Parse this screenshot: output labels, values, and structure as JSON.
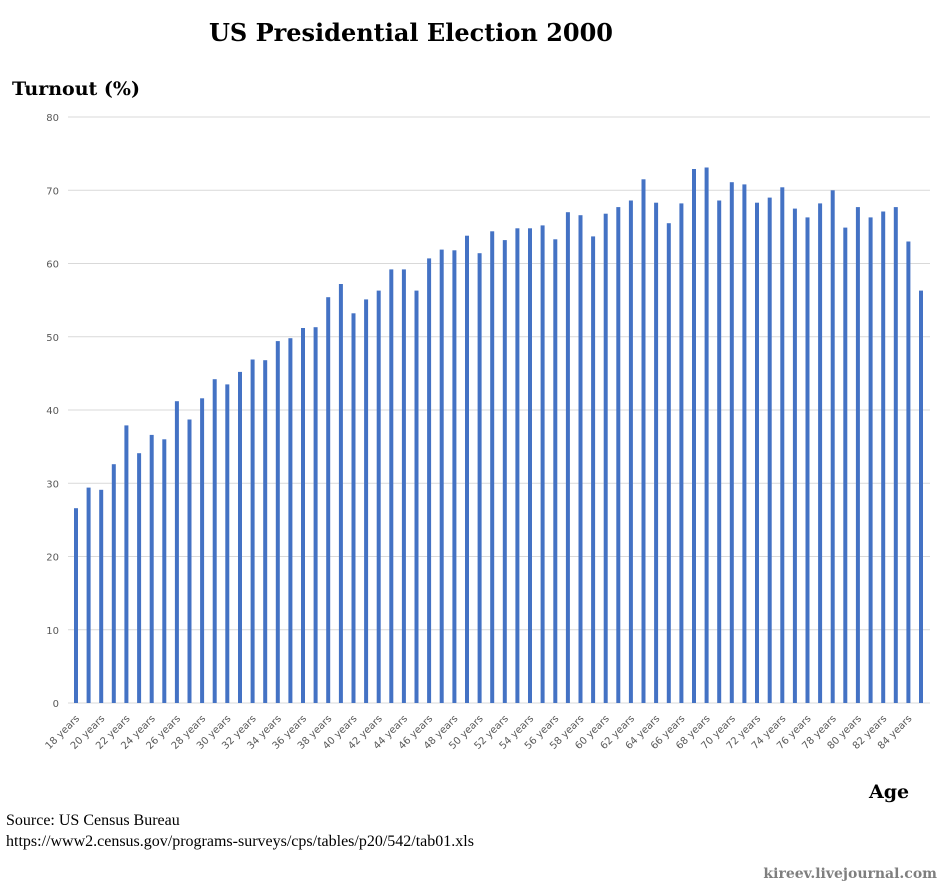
{
  "chart_data": {
    "type": "bar",
    "title": "US Presidential Election 2000",
    "ylabel": "Turnout (%)",
    "xlabel": "Age",
    "ylim": [
      0,
      80
    ],
    "yticks": [
      0,
      10,
      20,
      30,
      40,
      50,
      60,
      70,
      80
    ],
    "grid": true,
    "legend": "none",
    "bar_color": "#4472c4",
    "grid_color": "#d9d9d9",
    "categories": [
      "18 years",
      "19 years",
      "20 years",
      "21 years",
      "22 years",
      "23 years",
      "24 years",
      "25 years",
      "26 years",
      "27 years",
      "28 years",
      "29 years",
      "30 years",
      "31 years",
      "32 years",
      "33 years",
      "34 years",
      "35 years",
      "36 years",
      "37 years",
      "38 years",
      "39 years",
      "40 years",
      "41 years",
      "42 years",
      "43 years",
      "44 years",
      "45 years",
      "46 years",
      "47 years",
      "48 years",
      "49 years",
      "50 years",
      "51 years",
      "52 years",
      "53 years",
      "54 years",
      "55 years",
      "56 years",
      "57 years",
      "58 years",
      "59 years",
      "60 years",
      "61 years",
      "62 years",
      "63 years",
      "64 years",
      "65 years",
      "66 years",
      "67 years",
      "68 years",
      "69 years",
      "70 years",
      "71 years",
      "72 years",
      "73 years",
      "74 years",
      "75 years",
      "76 years",
      "77 years",
      "78 years",
      "79 years",
      "80 years",
      "81 years",
      "82 years",
      "83 years",
      "84 years",
      "85 years"
    ],
    "xtick_labels": [
      "18 years",
      "20 years",
      "22 years",
      "24 years",
      "26 years",
      "28 years",
      "30 years",
      "32 years",
      "34 years",
      "36 years",
      "38 years",
      "40 years",
      "42 years",
      "44 years",
      "46 years",
      "48 years",
      "50 years",
      "52 years",
      "54 years",
      "56 years",
      "58 years",
      "60 years",
      "62 years",
      "64 years",
      "66 years",
      "68 years",
      "70 years",
      "72 years",
      "74 years",
      "76 years",
      "78 years",
      "80 years",
      "82 years",
      "84 years"
    ],
    "values": [
      26.6,
      29.4,
      29.1,
      32.6,
      37.9,
      34.1,
      36.6,
      36.0,
      41.2,
      38.7,
      41.6,
      44.2,
      43.5,
      45.2,
      46.9,
      46.8,
      49.4,
      49.8,
      51.2,
      51.3,
      55.4,
      57.2,
      53.2,
      55.1,
      56.3,
      59.2,
      59.2,
      56.3,
      60.7,
      61.9,
      61.8,
      63.8,
      61.4,
      64.4,
      63.2,
      64.8,
      64.8,
      65.2,
      63.3,
      67.0,
      66.6,
      63.7,
      66.8,
      67.7,
      68.6,
      71.5,
      68.3,
      65.5,
      68.2,
      72.9,
      73.1,
      68.6,
      71.1,
      70.8,
      68.3,
      69.0,
      70.4,
      67.5,
      66.3,
      68.2,
      70.0,
      64.9,
      67.7,
      66.3,
      67.1,
      67.7,
      63.0,
      56.3
    ]
  },
  "footer": {
    "source_line": "Source: US Census Bureau",
    "source_url": "https://www2.census.gov/programs-surveys/cps/tables/p20/542/tab01.xls",
    "credit": "kireev.livejournal.com"
  }
}
